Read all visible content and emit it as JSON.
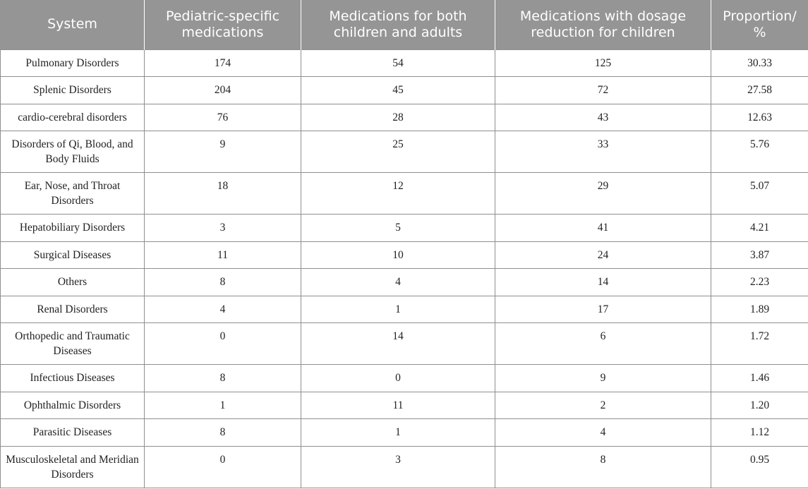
{
  "table": {
    "headers": [
      "System",
      "Pediatric-specific medications",
      "Medications for both children and adults",
      "Medications with dosage reduction for children",
      "Proportion/ %"
    ],
    "rows": [
      [
        "Pulmonary Disorders",
        "174",
        "54",
        "125",
        "30.33"
      ],
      [
        "Splenic Disorders",
        "204",
        "45",
        "72",
        "27.58"
      ],
      [
        "cardio-cerebral disorders",
        "76",
        "28",
        "43",
        "12.63"
      ],
      [
        "Disorders of Qi, Blood, and Body Fluids",
        "9",
        "25",
        "33",
        "5.76"
      ],
      [
        "Ear, Nose, and Throat Disorders",
        "18",
        "12",
        "29",
        "5.07"
      ],
      [
        "Hepatobiliary Disorders",
        "3",
        "5",
        "41",
        "4.21"
      ],
      [
        "Surgical Diseases",
        "11",
        "10",
        "24",
        "3.87"
      ],
      [
        "Others",
        "8",
        "4",
        "14",
        "2.23"
      ],
      [
        "Renal Disorders",
        "4",
        "1",
        "17",
        "1.89"
      ],
      [
        "Orthopedic and Traumatic Diseases",
        "0",
        "14",
        "6",
        "1.72"
      ],
      [
        "Infectious Diseases",
        "8",
        "0",
        "9",
        "1.46"
      ],
      [
        "Ophthalmic Disorders",
        "1",
        "11",
        "2",
        "1.20"
      ],
      [
        "Parasitic Diseases",
        "8",
        "1",
        "4",
        "1.12"
      ],
      [
        "Musculoskeletal and Meridian Disorders",
        "0",
        "3",
        "8",
        "0.95"
      ]
    ]
  }
}
